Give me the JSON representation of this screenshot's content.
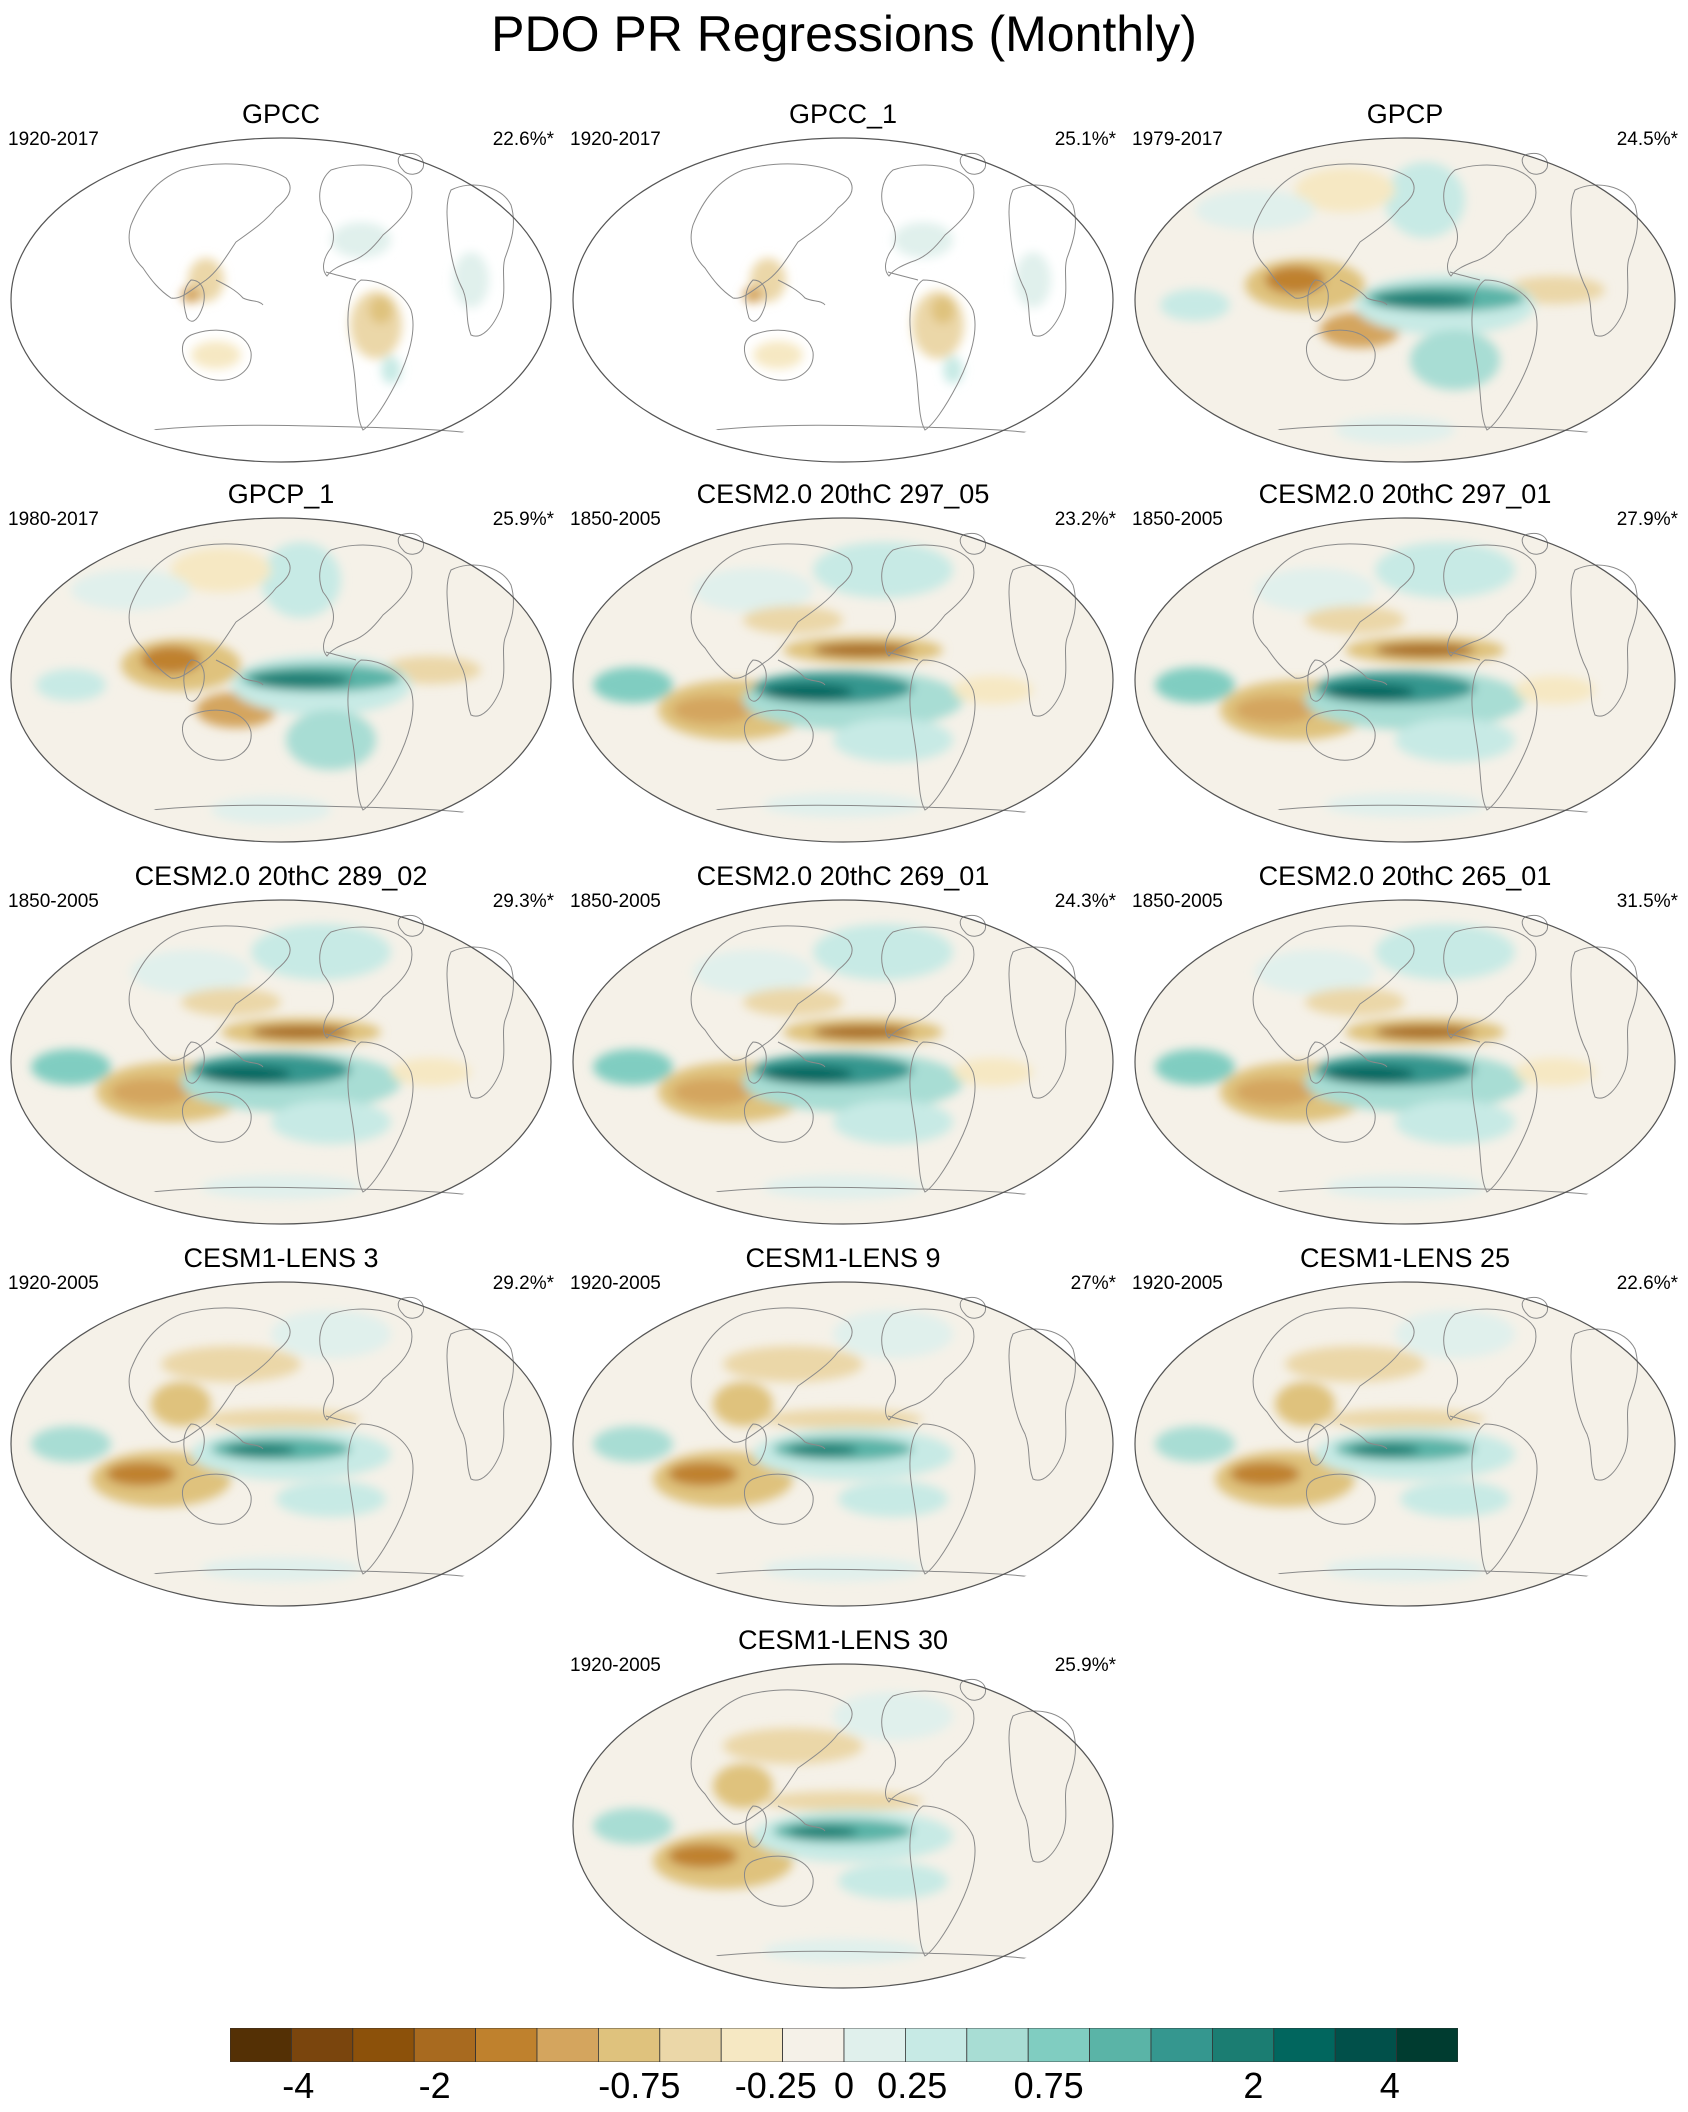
{
  "title": "PDO PR Regressions (Monthly)",
  "panels": [
    {
      "name": "GPCC",
      "years": "1920-2017",
      "pct": "22.6%*",
      "style": "land"
    },
    {
      "name": "GPCC_1",
      "years": "1920-2017",
      "pct": "25.1%*",
      "style": "land"
    },
    {
      "name": "GPCP",
      "years": "1979-2017",
      "pct": "24.5%*",
      "style": "obs"
    },
    {
      "name": "GPCP_1",
      "years": "1980-2017",
      "pct": "25.9%*",
      "style": "obs"
    },
    {
      "name": "CESM2.0 20thC 297_05",
      "years": "1850-2005",
      "pct": "23.2%*",
      "style": "model"
    },
    {
      "name": "CESM2.0 20thC 297_01",
      "years": "1850-2005",
      "pct": "27.9%*",
      "style": "model"
    },
    {
      "name": "CESM2.0 20thC 289_02",
      "years": "1850-2005",
      "pct": "29.3%*",
      "style": "model"
    },
    {
      "name": "CESM2.0 20thC 269_01",
      "years": "1850-2005",
      "pct": "24.3%*",
      "style": "model"
    },
    {
      "name": "CESM2.0 20thC 265_01",
      "years": "1850-2005",
      "pct": "31.5%*",
      "style": "model"
    },
    {
      "name": "CESM1-LENS 3",
      "years": "1920-2005",
      "pct": "29.2%*",
      "style": "lens"
    },
    {
      "name": "CESM1-LENS 9",
      "years": "1920-2005",
      "pct": "27%*",
      "style": "lens"
    },
    {
      "name": "CESM1-LENS 25",
      "years": "1920-2005",
      "pct": "22.6%*",
      "style": "lens"
    },
    {
      "name": "CESM1-LENS 30",
      "years": "1920-2005",
      "pct": "25.9%*",
      "style": "lens"
    }
  ],
  "colorbar": {
    "levels": [
      -4,
      -3,
      -2,
      -1.5,
      -1,
      -0.75,
      -0.5,
      -0.25,
      0,
      0.25,
      0.5,
      0.75,
      1,
      1.5,
      2,
      3,
      4
    ],
    "tick_labels": [
      "-4",
      "-2",
      "-0.75",
      "-0.25",
      "0",
      "0.25",
      "0.75",
      "2",
      "4"
    ],
    "tick_levels": [
      -4,
      -2,
      -0.75,
      -0.25,
      0,
      0.25,
      0.75,
      2,
      4
    ],
    "colors": [
      "#543005",
      "#7a450d",
      "#8c510a",
      "#a86a1f",
      "#bf812d",
      "#d4a55e",
      "#dfc27d",
      "#ebd7a8",
      "#f6e8c3",
      "#f5f1e8",
      "#e0f0ec",
      "#c7eae5",
      "#a8ddd4",
      "#80cdc1",
      "#5ab4a7",
      "#35978f",
      "#1b7d72",
      "#01665e",
      "#01504a",
      "#003c30"
    ]
  }
}
